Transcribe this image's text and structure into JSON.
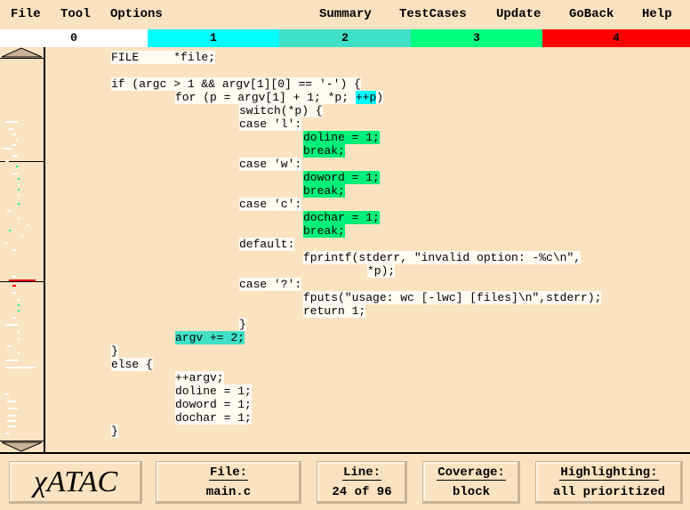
{
  "menu": {
    "file": "File",
    "tool": "Tool",
    "options": "Options",
    "summary": "Summary",
    "testcases": "TestCases",
    "update": "Update",
    "goback": "GoBack",
    "help": "Help"
  },
  "priority_bar": [
    {
      "label": "0",
      "color": "#ffffff"
    },
    {
      "label": "1",
      "color": "#00ffff"
    },
    {
      "label": "2",
      "color": "#40e0c8"
    },
    {
      "label": "3",
      "color": "#00ff7f"
    },
    {
      "label": "4",
      "color": "#ff0000"
    }
  ],
  "colors": {
    "background": "#fbe3c1",
    "hl1": "#00ffff",
    "hl2": "#40e0c8",
    "hl3": "#00f07a",
    "hl4": "#ff0000"
  },
  "code_lines": [
    [
      {
        "t": "FILE     *file;",
        "h": 0
      }
    ],
    [],
    [
      {
        "t": "if (argc > 1 && argv[1][0] == '-') {",
        "h": 0
      }
    ],
    [
      {
        "t": "for (p = argv[1] + 1; *p; ",
        "h": 0
      },
      {
        "t": "++p",
        "h": 1
      },
      {
        "t": ")",
        "h": 0
      }
    ],
    [
      {
        "t": "switch(*p) {",
        "h": 0
      }
    ],
    [
      {
        "t": "case 'l':",
        "h": 0
      }
    ],
    [
      {
        "t": "doline = 1;",
        "h": 3
      }
    ],
    [
      {
        "t": "break;",
        "h": 3
      }
    ],
    [
      {
        "t": "case 'w':",
        "h": 0
      }
    ],
    [
      {
        "t": "doword = 1;",
        "h": 3
      }
    ],
    [
      {
        "t": "break;",
        "h": 3
      }
    ],
    [
      {
        "t": "case 'c':",
        "h": 0
      }
    ],
    [
      {
        "t": "dochar = 1;",
        "h": 3
      }
    ],
    [
      {
        "t": "break;",
        "h": 3
      }
    ],
    [
      {
        "t": "default:",
        "h": 0
      }
    ],
    [
      {
        "t": "fprintf(stderr, \"invalid option: -%c\\n\",",
        "h": 0
      }
    ],
    [
      {
        "t": "*p);",
        "h": 0
      }
    ],
    [
      {
        "t": "case '?':",
        "h": 0
      }
    ],
    [
      {
        "t": "fputs(\"usage: wc [-lwc] [files]\\n\",stderr);",
        "h": 0
      }
    ],
    [
      {
        "t": "return 1;",
        "h": 0
      }
    ],
    [
      {
        "t": "}",
        "h": 0
      }
    ],
    [
      {
        "t": "argv += 2;",
        "h": 2
      }
    ],
    [
      {
        "t": "}",
        "h": 0
      }
    ],
    [
      {
        "t": "else {",
        "h": 0
      }
    ],
    [
      {
        "t": "++argv;",
        "h": 0
      }
    ],
    [
      {
        "t": "doline = 1;",
        "h": 0
      }
    ],
    [
      {
        "t": "doword = 1;",
        "h": 0
      }
    ],
    [
      {
        "t": "dochar = 1;",
        "h": 0
      }
    ],
    [
      {
        "t": "}",
        "h": 0
      }
    ]
  ],
  "status": {
    "logo": "χATAC",
    "file_label": "File:",
    "file_value": "main.c",
    "line_label": "Line:",
    "line_value": "24 of 96",
    "coverage_label": "Coverage:",
    "coverage_value": "block",
    "highlight_label": "Highlighting:",
    "highlight_value": "all prioritized"
  },
  "icons": {
    "scroll_up": "triangle-up-icon",
    "scroll_down": "triangle-down-icon"
  }
}
